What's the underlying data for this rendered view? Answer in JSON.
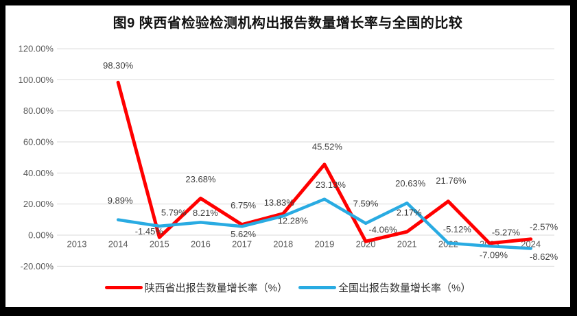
{
  "frame": {
    "border_color": "#000000",
    "panel_background": "#ffffff"
  },
  "chart_data": {
    "type": "line",
    "title": "图9  陕西省检验检测机构出报告数量增长率与全国的比较",
    "categories": [
      "2013",
      "2014",
      "2015",
      "2016",
      "2017",
      "2018",
      "2019",
      "2020",
      "2021",
      "2022",
      "2023",
      "2024"
    ],
    "series": [
      {
        "name": "陕西省出报告数量增长率（%）",
        "color": "#ff0000",
        "values": [
          null,
          98.3,
          -1.45,
          23.68,
          6.75,
          13.83,
          45.52,
          -4.06,
          2.17,
          21.76,
          -5.27,
          -2.57
        ],
        "labels": [
          "",
          "98.30%",
          "-1.45%",
          "23.68%",
          "6.75%",
          "13.83%",
          "45.52%",
          "-4.06%",
          "2.17%",
          "21.76%",
          "-5.27%",
          "-2.57%"
        ]
      },
      {
        "name": "全国出报告数量增长率（%）",
        "color": "#29abe2",
        "values": [
          null,
          9.89,
          5.79,
          8.21,
          5.62,
          12.28,
          23.13,
          7.59,
          20.63,
          -5.12,
          -7.09,
          -8.62
        ],
        "labels": [
          "",
          "9.89%",
          "5.79%",
          "8.21%",
          "5.62%",
          "12.28%",
          "23.13%",
          "7.59%",
          "20.63%",
          "-5.12%",
          "-7.09%",
          "-8.62%"
        ]
      }
    ],
    "y_axis": {
      "min": -20,
      "max": 120,
      "step": 20,
      "tick_labels": [
        "120.00%",
        "100.00%",
        "80.00%",
        "60.00%",
        "40.00%",
        "20.00%",
        "0.00%",
        "-20.00%"
      ]
    },
    "grid": true,
    "legend_position": "bottom"
  }
}
